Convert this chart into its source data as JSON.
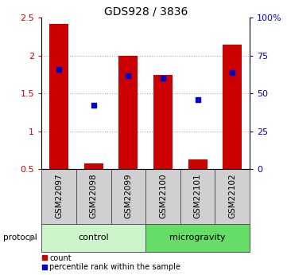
{
  "title": "GDS928 / 3836",
  "samples": [
    "GSM22097",
    "GSM22098",
    "GSM22099",
    "GSM22100",
    "GSM22101",
    "GSM22102"
  ],
  "count_values": [
    2.42,
    0.58,
    2.0,
    1.75,
    0.63,
    2.15
  ],
  "percentile_values": [
    66,
    42,
    62,
    60,
    46,
    64
  ],
  "bar_color": "#cc0000",
  "square_color": "#0000cc",
  "ylim_left": [
    0.5,
    2.5
  ],
  "ylim_right": [
    0,
    100
  ],
  "yticks_left": [
    0.5,
    1.0,
    1.5,
    2.0,
    2.5
  ],
  "yticks_right": [
    0,
    25,
    50,
    75,
    100
  ],
  "ytick_labels_right": [
    "0",
    "25",
    "50",
    "75",
    "100%"
  ],
  "protocol_groups": [
    {
      "label": "control",
      "indices": [
        0,
        1,
        2
      ],
      "color": "#ccf5cc"
    },
    {
      "label": "microgravity",
      "indices": [
        3,
        4,
        5
      ],
      "color": "#66dd66"
    }
  ],
  "protocol_label": "protocol",
  "legend_count_label": "count",
  "legend_pct_label": "percentile rank within the sample",
  "title_fontsize": 10,
  "axis_tick_fontsize": 8,
  "bar_width": 0.55,
  "grid_color": "#000000",
  "grid_alpha": 0.4,
  "sample_label_color": "#d0d0d0",
  "sample_label_fontsize": 7.5
}
